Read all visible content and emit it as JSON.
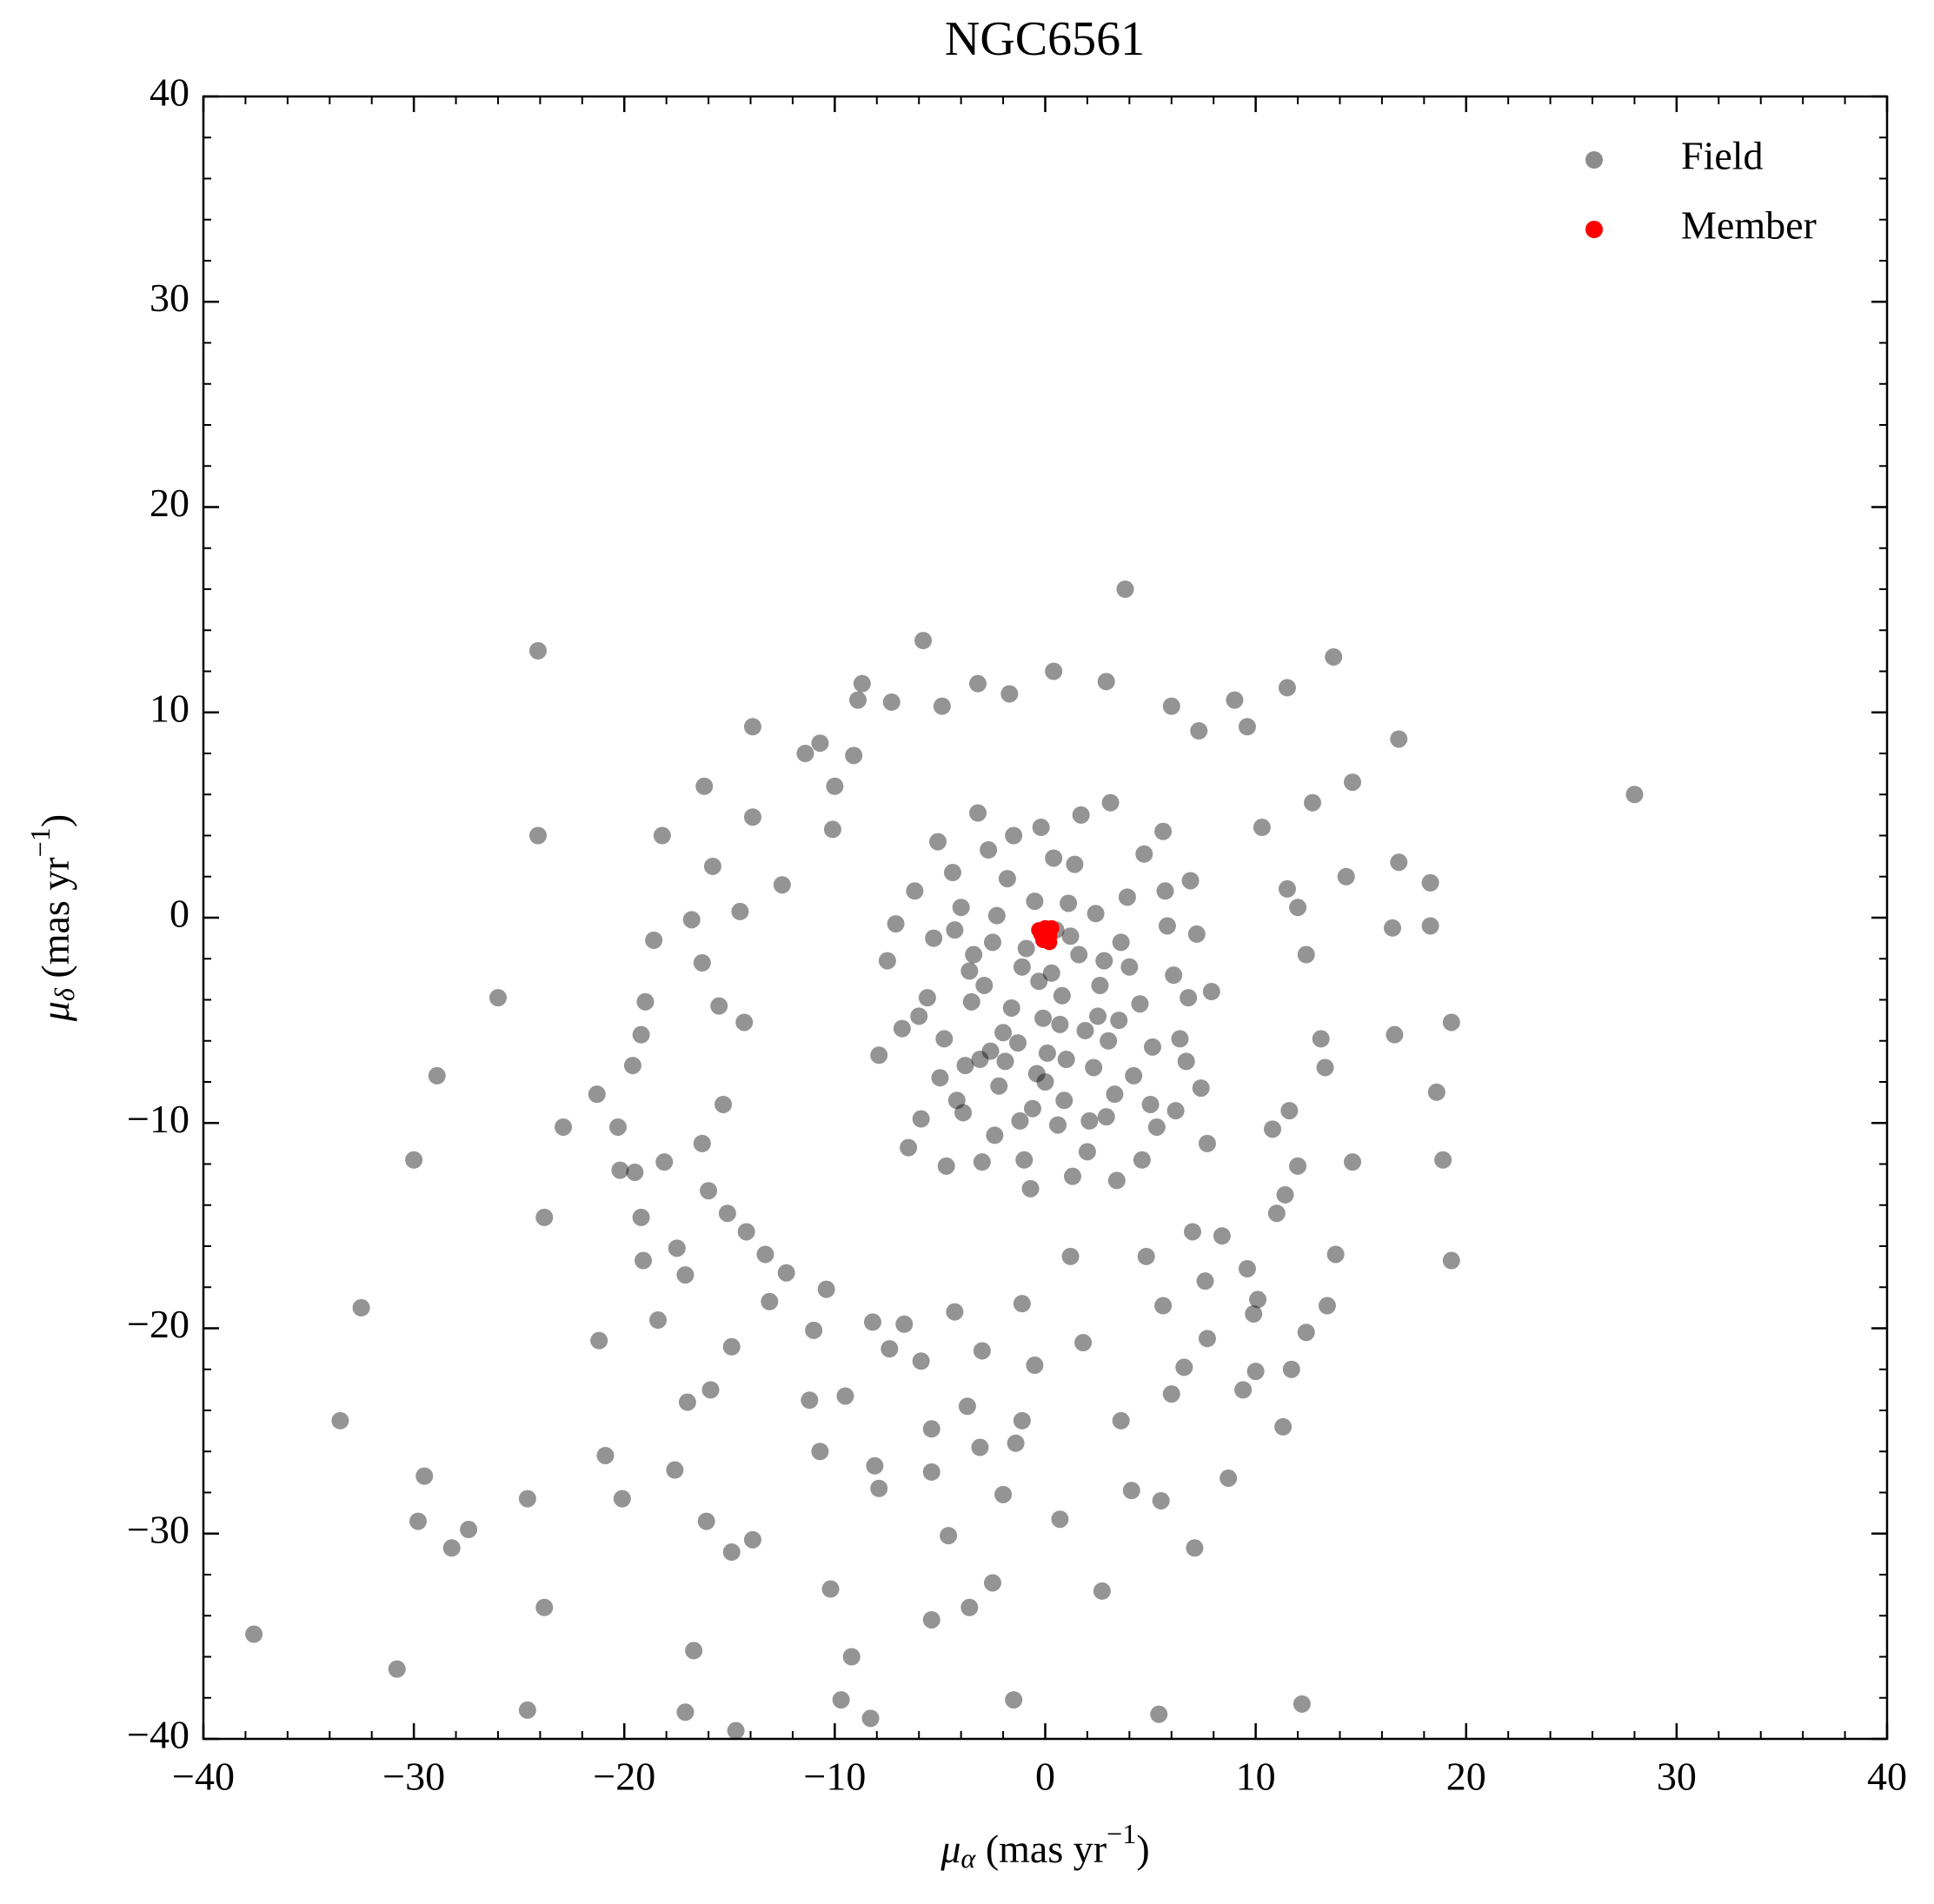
{
  "chart_data": {
    "type": "scatter",
    "title": "NGC6561",
    "xlabel": {
      "symbol": "μ",
      "sub": "α",
      "text": " (mas yr",
      "sup": "−1",
      "end": ")"
    },
    "ylabel": {
      "symbol": "μ",
      "sub": "δ",
      "text": " (mas yr",
      "sup": "−1",
      "end": ")"
    },
    "xlim": [
      -40,
      40
    ],
    "ylim": [
      -40,
      40
    ],
    "xticks": [
      {
        "value": -40,
        "label": "−40"
      },
      {
        "value": -30,
        "label": "−30"
      },
      {
        "value": -20,
        "label": "−20"
      },
      {
        "value": -10,
        "label": "−10"
      },
      0,
      10,
      20,
      30,
      40
    ],
    "yticks": [
      {
        "value": -40,
        "label": "−40"
      },
      {
        "value": -30,
        "label": "−30"
      },
      {
        "value": -20,
        "label": "−20"
      },
      {
        "value": -10,
        "label": "−10"
      },
      0,
      10,
      20,
      30,
      40
    ],
    "legend": "upper right",
    "series": [
      {
        "name": "Field",
        "color": "#000000",
        "alpha": 0.42,
        "x": [
          -24.1,
          3.8,
          -5.8,
          13.7,
          -24.1,
          28.0,
          -26.0,
          -28.9,
          -30.0,
          -32.5,
          -33.5,
          -29.5,
          -29.8,
          -27.4,
          -28.2,
          -24.6,
          -23.8,
          -37.6,
          -30.8,
          -24.6,
          -17.1,
          -16.7,
          -14.7,
          -8.3,
          -9.7,
          -9.2,
          -10.2,
          -5.4,
          -3.6,
          -2.5,
          -1.5,
          5.4,
          12.2,
          2.7,
          7.1,
          0.7,
          5.5,
          8.7,
          -4.6,
          -13.9,
          -16.1,
          -14.9,
          -20.1,
          -20.9,
          -17.6,
          -17.0,
          -15.9,
          -21.2,
          -18.4,
          11.3,
          9.4,
          10.0,
          18.6,
          19.3,
          18.9,
          19.3,
          18.3,
          18.3,
          16.8,
          16.8,
          16.5,
          16.6,
          14.6,
          13.8,
          13.4,
          12.4,
          11.7,
          14.6,
          11.5,
          12.7,
          14.3,
          -13.9,
          -16.2,
          -18.2,
          -15.8,
          -13.9,
          -18.6,
          -19.0,
          -19.2,
          -19.6,
          -21.3,
          -22.9,
          -20.3,
          -20.2,
          -19.5,
          -18.1,
          -19.2,
          -19.1,
          -17.5,
          -17.1,
          -23.8,
          -14.9,
          -11.0,
          -11.2,
          -9.5,
          -10.7,
          -8.1,
          -7.9,
          -5.4,
          -5.4,
          -3.7,
          -3.1,
          -1.4,
          -2.0,
          -1.1,
          -0.5,
          1.8,
          3.6,
          4.1,
          6.0,
          6.6,
          7.7,
          10.1,
          9.6,
          9.9,
          10.8,
          11.6,
          12.0,
          11.4,
          11.0,
          13.1,
          13.3,
          12.4,
          12.0,
          11.5,
          10.3,
          9.6,
          9.0,
          7.3,
          6.0,
          2.9,
          0.4,
          -1.7,
          -3.2,
          -4.9,
          -7.3,
          -8.7,
          -8.9,
          -9.1,
          -10.7,
          -11.4,
          -10.0,
          -10.1,
          -12.5,
          -14.5,
          -16.8,
          -16.3,
          -15.5,
          -14.3,
          -15.3,
          -16.3,
          -16.0,
          -15.1,
          -14.2,
          -13.3,
          -13.1,
          -12.3,
          -10.4,
          -8.2,
          -7.4,
          -6.7,
          -5.9,
          -4.3,
          -3.0,
          -1.1,
          1.2,
          4.8,
          5.6,
          7.6,
          8.4,
          7.0,
          -7.5,
          -6.8,
          -6.2,
          -5.9,
          -5.1,
          -4.7,
          -4.3,
          -3.8,
          -3.2,
          -2.9,
          -2.4,
          -1.8,
          -1.3,
          -0.7,
          -0.2,
          0.3,
          0.9,
          1.4,
          2.0,
          2.5,
          3.1,
          3.6,
          4.2,
          4.7,
          5.3,
          5.8,
          6.4,
          6.9,
          7.4,
          7.9,
          -7.9,
          -7.1,
          -6.5,
          -5.6,
          -5.0,
          -4.4,
          -3.9,
          -3.4,
          -2.7,
          -2.2,
          -1.6,
          -1.0,
          -0.5,
          0.1,
          0.6,
          1.2,
          1.7,
          2.3,
          2.8,
          3.4,
          3.9,
          4.5,
          5.0,
          5.6,
          6.1,
          6.7,
          7.2,
          7.7,
          -6.0,
          -5.3,
          -4.8,
          -4.0,
          -3.5,
          -3.0,
          -2.5,
          -2.0,
          -1.5,
          -1.1,
          -0.6,
          -0.1,
          0.4,
          0.8,
          1.3,
          1.9,
          2.4,
          2.9,
          3.5,
          4.0,
          4.6,
          5.1,
          5.7,
          6.2,
          6.8,
          -1.9,
          -0.9,
          0.0,
          1.0,
          1.6,
          -2.6,
          2.6,
          -3.6,
          3.3,
          -4.2,
          0.7,
          -0.3,
          1.1,
          -1.2,
          2.1,
          -0.4,
          0.5,
          -2.3,
          3.0,
          -3.1
        ],
        "values": [
          13.0,
          16.0,
          13.5,
          12.7,
          4.0,
          6.0,
          -3.9,
          -7.7,
          -11.8,
          -19.0,
          -24.5,
          -27.2,
          -29.4,
          -29.8,
          -30.7,
          -28.3,
          -33.6,
          -34.9,
          -36.6,
          -38.6,
          -38.7,
          -35.7,
          -39.6,
          -39.0,
          -38.1,
          -36.0,
          -32.7,
          -34.2,
          -33.6,
          -32.4,
          -38.1,
          -38.8,
          -38.3,
          -32.8,
          -30.7,
          -29.3,
          -28.4,
          -27.3,
          -30.1,
          -30.3,
          -29.4,
          -30.9,
          -28.3,
          -26.2,
          -26.9,
          -23.6,
          -23.0,
          -20.6,
          -19.6,
          -24.8,
          -23.0,
          -22.1,
          -8.5,
          -5.1,
          -11.8,
          -16.7,
          -0.4,
          1.7,
          8.7,
          2.7,
          -0.5,
          -5.7,
          -11.9,
          -16.4,
          -18.9,
          -20.2,
          -22.0,
          6.6,
          11.2,
          5.6,
          2.0,
          9.3,
          6.4,
          4.0,
          2.5,
          4.9,
          -1.1,
          -4.1,
          -5.7,
          -7.2,
          -8.6,
          -10.2,
          -10.2,
          -12.3,
          -12.4,
          -11.9,
          -14.6,
          -16.7,
          -16.1,
          -17.4,
          -14.6,
          -20.9,
          -20.1,
          -23.5,
          -23.3,
          -26.0,
          -26.7,
          -27.8,
          -24.9,
          -27.0,
          -23.8,
          -25.8,
          -25.6,
          -28.1,
          -24.5,
          -21.8,
          -20.7,
          -24.5,
          -27.9,
          -23.2,
          -21.9,
          -20.5,
          -18.6,
          -17.1,
          -19.3,
          -10.3,
          -9.4,
          -12.1,
          -13.5,
          -14.4,
          -5.9,
          -7.3,
          -1.8,
          0.5,
          1.4,
          4.4,
          9.3,
          10.6,
          9.1,
          10.3,
          11.5,
          12.0,
          10.9,
          11.4,
          10.3,
          10.5,
          11.4,
          10.6,
          7.9,
          8.5,
          8.0,
          6.4,
          4.3,
          1.6,
          0.3,
          -0.1,
          -2.2,
          -4.3,
          -5.1,
          -9.1,
          -11.0,
          -13.3,
          -14.4,
          -15.3,
          -16.4,
          -18.7,
          -17.3,
          -18.1,
          -19.7,
          -21.0,
          -19.8,
          -21.6,
          -19.2,
          -21.1,
          -18.8,
          -16.5,
          -16.5,
          -18.9,
          -17.7,
          -15.5,
          -15.3,
          -2.1,
          -5.4,
          1.3,
          -9.8,
          3.7,
          -12.1,
          -0.6,
          -7.2,
          5.1,
          -3.3,
          -10.6,
          1.9,
          -6.1,
          -13.2,
          4.4,
          -2.7,
          -8.9,
          2.6,
          -11.4,
          -4.8,
          5.6,
          -1.2,
          -7.7,
          3.1,
          -10.2,
          -0.4,
          -5.9,
          1.8,
          -8.3,
          -3.6,
          -6.7,
          -0.3,
          -11.2,
          -3.9,
          -7.8,
          2.2,
          -9.5,
          -1.8,
          3.3,
          -8.2,
          -4.4,
          -11.8,
          0.8,
          -6.6,
          -10.1,
          -0.9,
          5.0,
          -7.3,
          -2.1,
          -12.8,
          1.0,
          -4.2,
          -9.1,
          4.2,
          -2.8,
          -7.0,
          -0.8,
          -11.0,
          -4.8,
          -1.0,
          -5.9,
          0.5,
          -4.1,
          -11.9,
          -1.2,
          -5.6,
          4.0,
          -2.4,
          -9.3,
          -4.9,
          2.9,
          -3.8,
          -12.6,
          -5.5,
          0.2,
          -9.7,
          -5.0,
          -2.4,
          -11.8,
          -6.3,
          1.3,
          -9.4,
          -3.9,
          -7.0,
          -1.5,
          -8.0,
          -6.9,
          -1.8,
          -6.5,
          -3.3,
          -2.6,
          -8.6,
          -8.9,
          -5.2,
          -3.1,
          0.7,
          -9.9,
          -9.9,
          -7.6,
          -0.6,
          0.1,
          -6.0,
          -6.9
        ]
      },
      {
        "name": "Member",
        "color": "#ff0000",
        "alpha": 1,
        "x": [
          0.0,
          -0.2,
          0.2,
          0.3,
          -0.1,
          0.1,
          -0.3,
          0.2
        ],
        "values": [
          -0.5,
          -0.8,
          -0.9,
          -0.5,
          -1.1,
          -0.7,
          -0.6,
          -1.2
        ]
      }
    ]
  }
}
